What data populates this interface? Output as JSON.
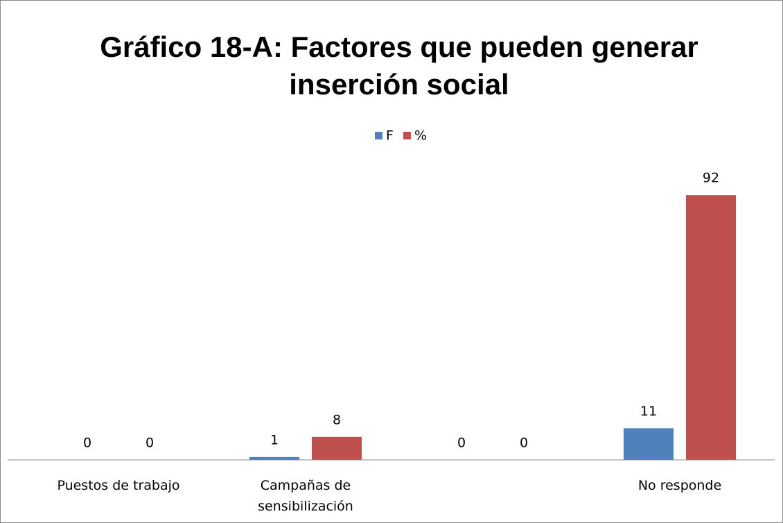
{
  "chart_data": {
    "type": "bar",
    "title": "Gráfico 18-A: Factores que pueden generar inserción social",
    "categories": [
      "Puestos de trabajo",
      "Campañas de sensibilización",
      null,
      "No responde"
    ],
    "series": [
      {
        "name": "F",
        "color": "#4f81bd",
        "values": [
          0,
          1,
          0,
          11
        ]
      },
      {
        "name": "%",
        "color": "#c0504d",
        "values": [
          0,
          8,
          0,
          92
        ]
      }
    ],
    "ylim": [
      0,
      100
    ],
    "legend": "top"
  }
}
